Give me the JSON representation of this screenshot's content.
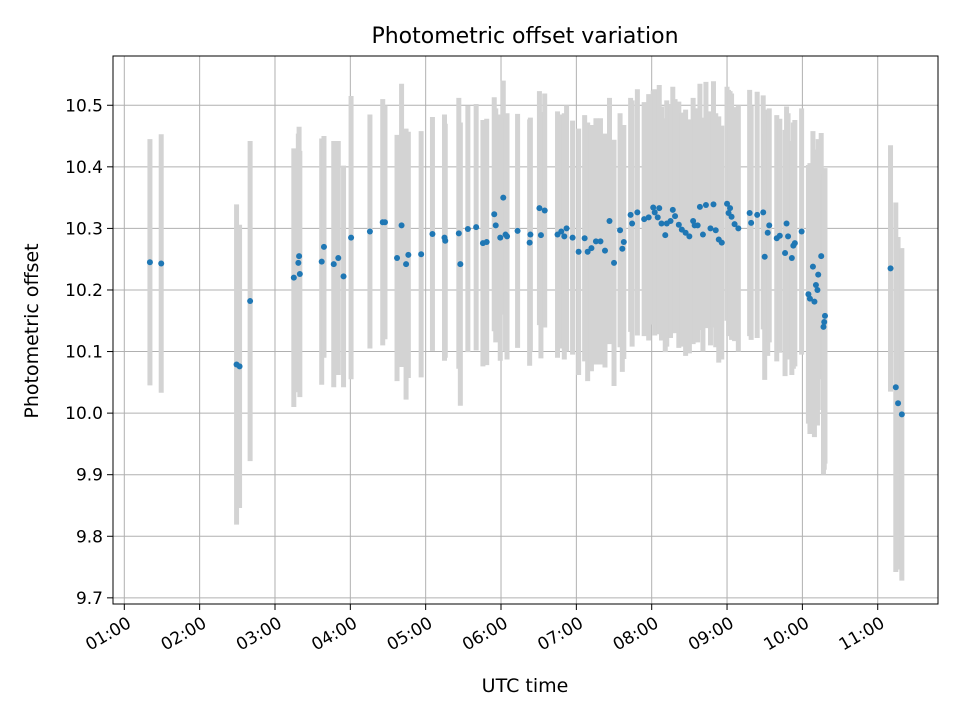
{
  "chart_data": {
    "type": "scatter",
    "title": "Photometric offset variation",
    "xlabel": "UTC time",
    "ylabel": "Photometric offset",
    "grid": true,
    "xlim_hours": [
      0.85,
      11.8
    ],
    "ylim": [
      9.69,
      10.58
    ],
    "x_ticks": [
      {
        "hour": 1,
        "label": "01:00"
      },
      {
        "hour": 2,
        "label": "02:00"
      },
      {
        "hour": 3,
        "label": "03:00"
      },
      {
        "hour": 4,
        "label": "04:00"
      },
      {
        "hour": 5,
        "label": "05:00"
      },
      {
        "hour": 6,
        "label": "06:00"
      },
      {
        "hour": 7,
        "label": "07:00"
      },
      {
        "hour": 8,
        "label": "08:00"
      },
      {
        "hour": 9,
        "label": "09:00"
      },
      {
        "hour": 10,
        "label": "10:00"
      },
      {
        "hour": 11,
        "label": "11:00"
      }
    ],
    "y_ticks": [
      {
        "value": 9.7,
        "label": "9.7"
      },
      {
        "value": 9.8,
        "label": "9.8"
      },
      {
        "value": 9.9,
        "label": "9.9"
      },
      {
        "value": 10.0,
        "label": "10.0"
      },
      {
        "value": 10.1,
        "label": "10.1"
      },
      {
        "value": 10.2,
        "label": "10.2"
      },
      {
        "value": 10.3,
        "label": "10.3"
      },
      {
        "value": 10.4,
        "label": "10.4"
      },
      {
        "value": 10.5,
        "label": "10.5"
      }
    ],
    "colors": {
      "point": "#1f77b4",
      "errorbar": "#d3d3d3",
      "grid": "#b0b0b0"
    },
    "series": [
      {
        "name": "Photometric offset",
        "points": [
          [
            1.34,
            10.245,
            0.2
          ],
          [
            1.49,
            10.243,
            0.21
          ],
          [
            2.49,
            10.079,
            0.26
          ],
          [
            2.53,
            10.076,
            0.23
          ],
          [
            2.67,
            10.182,
            0.26
          ],
          [
            3.25,
            10.22,
            0.21
          ],
          [
            3.31,
            10.244,
            0.21
          ],
          [
            3.32,
            10.255,
            0.21
          ],
          [
            3.33,
            10.226,
            0.2
          ],
          [
            3.62,
            10.246,
            0.2
          ],
          [
            3.65,
            10.27,
            0.18
          ],
          [
            3.78,
            10.242,
            0.2
          ],
          [
            3.84,
            10.252,
            0.19
          ],
          [
            3.91,
            10.222,
            0.18
          ],
          [
            4.01,
            10.285,
            0.23
          ],
          [
            4.26,
            10.295,
            0.19
          ],
          [
            4.43,
            10.31,
            0.2
          ],
          [
            4.46,
            10.31,
            0.19
          ],
          [
            4.62,
            10.252,
            0.2
          ],
          [
            4.68,
            10.305,
            0.23
          ],
          [
            4.74,
            10.242,
            0.22
          ],
          [
            4.77,
            10.257,
            0.2
          ],
          [
            4.94,
            10.258,
            0.2
          ],
          [
            5.09,
            10.291,
            0.19
          ],
          [
            5.25,
            10.285,
            0.2
          ],
          [
            5.26,
            10.28,
            0.19
          ],
          [
            5.44,
            10.292,
            0.22
          ],
          [
            5.46,
            10.242,
            0.23
          ],
          [
            5.56,
            10.299,
            0.2
          ],
          [
            5.67,
            10.302,
            0.2
          ],
          [
            5.76,
            10.276,
            0.2
          ],
          [
            5.81,
            10.278,
            0.2
          ],
          [
            5.91,
            10.323,
            0.19
          ],
          [
            5.93,
            10.305,
            0.19
          ],
          [
            5.99,
            10.285,
            0.2
          ],
          [
            6.03,
            10.35,
            0.19
          ],
          [
            6.06,
            10.29,
            0.19
          ],
          [
            6.08,
            10.287,
            0.2
          ],
          [
            6.22,
            10.296,
            0.19
          ],
          [
            6.38,
            10.277,
            0.2
          ],
          [
            6.39,
            10.29,
            0.19
          ],
          [
            6.51,
            10.333,
            0.19
          ],
          [
            6.53,
            10.289,
            0.2
          ],
          [
            6.58,
            10.329,
            0.19
          ],
          [
            6.75,
            10.29,
            0.2
          ],
          [
            6.8,
            10.295,
            0.19
          ],
          [
            6.84,
            10.287,
            0.2
          ],
          [
            6.87,
            10.3,
            0.2
          ],
          [
            6.95,
            10.285,
            0.19
          ],
          [
            7.03,
            10.262,
            0.2
          ],
          [
            7.11,
            10.284,
            0.2
          ],
          [
            7.15,
            10.262,
            0.21
          ],
          [
            7.2,
            10.268,
            0.2
          ],
          [
            7.26,
            10.279,
            0.2
          ],
          [
            7.32,
            10.279,
            0.2
          ],
          [
            7.38,
            10.264,
            0.19
          ],
          [
            7.44,
            10.312,
            0.2
          ],
          [
            7.5,
            10.244,
            0.2
          ],
          [
            7.58,
            10.297,
            0.19
          ],
          [
            7.61,
            10.267,
            0.2
          ],
          [
            7.63,
            10.278,
            0.19
          ],
          [
            7.72,
            10.322,
            0.19
          ],
          [
            7.74,
            10.308,
            0.2
          ],
          [
            7.81,
            10.326,
            0.2
          ],
          [
            7.9,
            10.315,
            0.19
          ],
          [
            7.96,
            10.318,
            0.2
          ],
          [
            8.02,
            10.334,
            0.19
          ],
          [
            8.04,
            10.326,
            0.2
          ],
          [
            8.08,
            10.318,
            0.19
          ],
          [
            8.1,
            10.333,
            0.2
          ],
          [
            8.13,
            10.308,
            0.19
          ],
          [
            8.18,
            10.289,
            0.19
          ],
          [
            8.2,
            10.308,
            0.2
          ],
          [
            8.25,
            10.312,
            0.19
          ],
          [
            8.28,
            10.33,
            0.2
          ],
          [
            8.31,
            10.32,
            0.19
          ],
          [
            8.36,
            10.306,
            0.2
          ],
          [
            8.4,
            10.298,
            0.19
          ],
          [
            8.45,
            10.293,
            0.2
          ],
          [
            8.5,
            10.287,
            0.19
          ],
          [
            8.55,
            10.312,
            0.2
          ],
          [
            8.57,
            10.305,
            0.19
          ],
          [
            8.61,
            10.305,
            0.19
          ],
          [
            8.64,
            10.335,
            0.2
          ],
          [
            8.68,
            10.29,
            0.19
          ],
          [
            8.72,
            10.338,
            0.2
          ],
          [
            8.78,
            10.3,
            0.19
          ],
          [
            8.82,
            10.339,
            0.2
          ],
          [
            8.85,
            10.297,
            0.19
          ],
          [
            8.89,
            10.282,
            0.2
          ],
          [
            8.93,
            10.277,
            0.19
          ],
          [
            9.0,
            10.34,
            0.19
          ],
          [
            9.02,
            10.325,
            0.2
          ],
          [
            9.04,
            10.333,
            0.19
          ],
          [
            9.06,
            10.319,
            0.2
          ],
          [
            9.1,
            10.307,
            0.19
          ],
          [
            9.15,
            10.3,
            0.2
          ],
          [
            9.3,
            10.325,
            0.2
          ],
          [
            9.32,
            10.309,
            0.19
          ],
          [
            9.4,
            10.322,
            0.2
          ],
          [
            9.48,
            10.326,
            0.19
          ],
          [
            9.5,
            10.254,
            0.2
          ],
          [
            9.54,
            10.293,
            0.2
          ],
          [
            9.56,
            10.305,
            0.19
          ],
          [
            9.66,
            10.284,
            0.2
          ],
          [
            9.7,
            10.288,
            0.19
          ],
          [
            9.77,
            10.26,
            0.2
          ],
          [
            9.79,
            10.308,
            0.19
          ],
          [
            9.81,
            10.287,
            0.2
          ],
          [
            9.86,
            10.252,
            0.19
          ],
          [
            9.88,
            10.272,
            0.2
          ],
          [
            9.9,
            10.276,
            0.2
          ],
          [
            9.99,
            10.295,
            0.2
          ],
          [
            10.08,
            10.193,
            0.21
          ],
          [
            10.1,
            10.186,
            0.22
          ],
          [
            10.14,
            10.238,
            0.22
          ],
          [
            10.16,
            10.181,
            0.22
          ],
          [
            10.18,
            10.208,
            0.22
          ],
          [
            10.2,
            10.2,
            0.22
          ],
          [
            10.21,
            10.225,
            0.22
          ],
          [
            10.25,
            10.255,
            0.2
          ],
          [
            10.28,
            10.14,
            0.24
          ],
          [
            10.29,
            10.148,
            0.24
          ],
          [
            10.3,
            10.158,
            0.24
          ],
          [
            11.17,
            10.235,
            0.2
          ],
          [
            11.24,
            10.042,
            0.3
          ],
          [
            11.27,
            10.016,
            0.27
          ],
          [
            11.32,
            9.998,
            0.27
          ]
        ]
      }
    ]
  }
}
